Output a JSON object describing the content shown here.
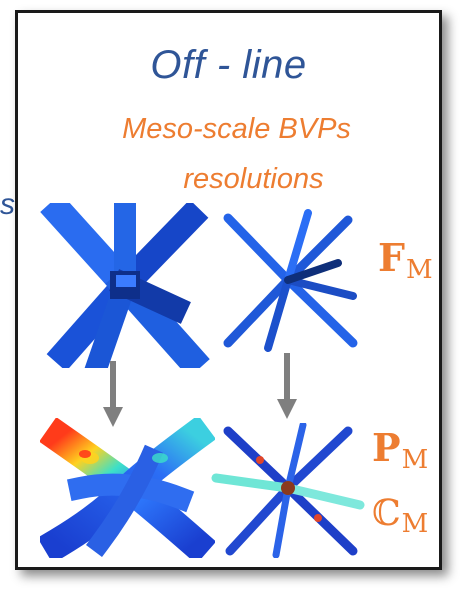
{
  "left_edge_text": "s",
  "panel": {
    "title": "Off - line",
    "subtitle_line1": "Meso-scale BVPs",
    "subtitle_line2": "resolutions"
  },
  "labels": {
    "f_main": "F",
    "f_sub": "M",
    "p_main": "P",
    "p_sub": "M",
    "c_main": "ℂ",
    "c_sub": "M"
  },
  "colors": {
    "title": "#2f5597",
    "subtitle": "#ed7d31",
    "labels": "#ed7d31",
    "strut_blue": "#1f5fe0",
    "arrow_gray": "#7f7f7f"
  }
}
